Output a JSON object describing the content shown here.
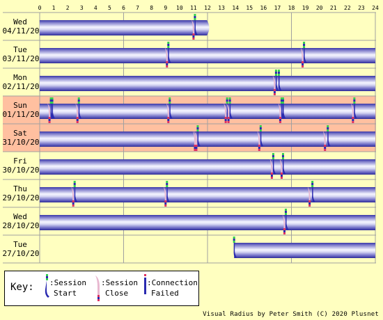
{
  "chart_data": {
    "type": "timeline",
    "x_ticks": [
      "0",
      "1",
      "2",
      "3",
      "4",
      "5",
      "6",
      "7",
      "8",
      "9",
      "10",
      "11",
      "12",
      "13",
      "14",
      "15",
      "16",
      "17",
      "18",
      "19",
      "20",
      "21",
      "22",
      "23",
      "24"
    ],
    "xlim": [
      0,
      24
    ],
    "rows": [
      {
        "day": "Wed",
        "date": "04/11/20",
        "highlight": false,
        "bars": [
          [
            0,
            11.95
          ]
        ],
        "starts": [
          11.1
        ],
        "closes": [
          11.0
        ],
        "failed": []
      },
      {
        "day": "Tue",
        "date": "03/11/20",
        "highlight": false,
        "bars": [
          [
            0,
            24
          ]
        ],
        "starts": [
          9.2,
          18.9
        ],
        "closes": [
          9.1,
          18.8
        ],
        "failed": []
      },
      {
        "day": "Mon",
        "date": "02/11/20",
        "highlight": false,
        "bars": [
          [
            0,
            24
          ]
        ],
        "starts": [
          16.9,
          17.1
        ],
        "closes": [
          16.8
        ],
        "failed": []
      },
      {
        "day": "Sun",
        "date": "01/11/20",
        "highlight": true,
        "bars": [
          [
            0,
            24
          ]
        ],
        "starts": [
          0.8,
          0.9,
          2.8,
          9.3,
          13.4,
          13.6,
          17.3,
          17.4,
          22.5
        ],
        "closes": [
          0.7,
          2.7,
          9.2,
          13.3,
          13.5,
          17.2,
          22.4
        ],
        "failed": []
      },
      {
        "day": "Sat",
        "date": "31/10/20",
        "highlight": true,
        "bars": [
          [
            0,
            24
          ]
        ],
        "starts": [
          11.3,
          15.8,
          20.6
        ],
        "closes": [
          11.1,
          11.2,
          15.7,
          20.4
        ],
        "failed": []
      },
      {
        "day": "Fri",
        "date": "30/10/20",
        "highlight": false,
        "bars": [
          [
            0,
            24
          ]
        ],
        "starts": [
          16.7,
          17.4
        ],
        "closes": [
          16.6,
          17.3
        ],
        "failed": []
      },
      {
        "day": "Thu",
        "date": "29/10/20",
        "highlight": false,
        "bars": [
          [
            0,
            24
          ]
        ],
        "starts": [
          2.5,
          9.1,
          19.5
        ],
        "closes": [
          2.4,
          9.0,
          19.3
        ],
        "failed": []
      },
      {
        "day": "Wed",
        "date": "28/10/20",
        "highlight": false,
        "bars": [
          [
            0,
            24
          ]
        ],
        "starts": [
          17.6
        ],
        "closes": [
          17.5
        ],
        "failed": []
      },
      {
        "day": "Tue",
        "date": "27/10/20",
        "highlight": false,
        "bars": [
          [
            13.9,
            24
          ]
        ],
        "starts": [
          13.9
        ],
        "closes": [],
        "failed": []
      }
    ]
  },
  "key": {
    "label": "Key:",
    "session_start_line1": ":Session",
    "session_start_line2": "Start",
    "session_close_line1": ":Session",
    "session_close_line2": "Close",
    "connection_failed_line1": ":Connection",
    "connection_failed_line2": "Failed"
  },
  "credit": "Visual Radius by Peter Smith (C) 2020 Plusnet",
  "colors": {
    "background": "#ffffc0",
    "highlight": "#ffc0a0",
    "bar_dark": "#3a38a8",
    "bar_light": "#f4f4ff",
    "start_marker_top": "#30d050",
    "start_marker_body": "#2a2ab0",
    "close_marker": "#e03060",
    "grid": "#a0a0a0"
  }
}
